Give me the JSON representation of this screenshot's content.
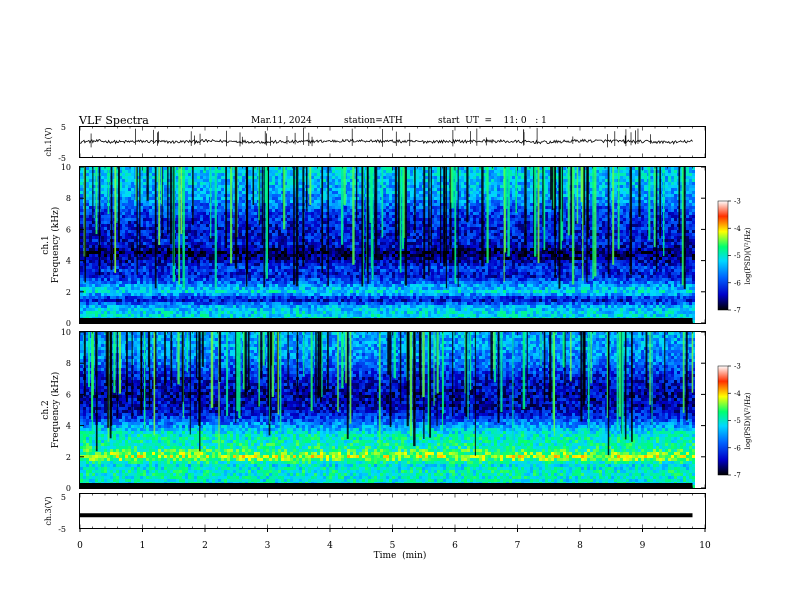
{
  "header": {
    "title": "VLF  Spectra",
    "date": "Mar.11, 2024",
    "station": "station=ATH",
    "start": "start  UT  =    11: 0   : 1"
  },
  "chart_data": [
    {
      "type": "line",
      "panel": "ch1-waveform",
      "ylabel": "ch.1(V)",
      "yticks": [
        "5",
        "-5"
      ],
      "ylim": [
        -5,
        5
      ],
      "xlim": [
        0,
        10
      ],
      "series": [
        {
          "x": [
            0,
            0.3,
            0.6,
            1.0,
            1.5,
            2.0,
            2.5,
            3.0,
            3.5,
            4.0,
            4.5,
            5.0,
            5.5,
            6.0,
            6.5,
            7.0,
            7.5,
            8.0,
            8.5,
            9.0,
            9.5,
            9.8
          ],
          "values": [
            0.1,
            0.3,
            0.0,
            0.2,
            0.0,
            0.3,
            0.2,
            0.0,
            0.1,
            0.3,
            0.4,
            0.2,
            0.1,
            0.2,
            0.3,
            0.1,
            -0.1,
            0.4,
            0.3,
            0.1,
            -0.1,
            0.2
          ]
        }
      ],
      "color": "#000000"
    },
    {
      "type": "heatmap",
      "panel": "ch1-spectrogram",
      "ylabel": "ch.1\nFrequency  (kHz)",
      "ylim": [
        0,
        10
      ],
      "xlim": [
        0,
        10
      ],
      "yticks": [
        "0",
        "2",
        "4",
        "6",
        "8",
        "10"
      ],
      "data_end_min": 9.8,
      "levels_log_psd": [
        {
          "f_khz": 0.5,
          "v": -5.2
        },
        {
          "f_khz": 1.0,
          "v": -5.4
        },
        {
          "f_khz": 1.5,
          "v": -6.4
        },
        {
          "f_khz": 2.0,
          "v": -5.2
        },
        {
          "f_khz": 2.5,
          "v": -5.7
        },
        {
          "f_khz": 3.0,
          "v": -6.3
        },
        {
          "f_khz": 3.5,
          "v": -6.1
        },
        {
          "f_khz": 4.0,
          "v": -6.5
        },
        {
          "f_khz": 4.5,
          "v": -6.8
        },
        {
          "f_khz": 5.0,
          "v": -6.3
        },
        {
          "f_khz": 6.0,
          "v": -6.3
        },
        {
          "f_khz": 7.0,
          "v": -6.1
        },
        {
          "f_khz": 8.0,
          "v": -5.6
        },
        {
          "f_khz": 9.0,
          "v": -5.4
        },
        {
          "f_khz": 10.0,
          "v": -5.3
        }
      ],
      "colorbar": {
        "label": "log(PSD)(V²/Hz)",
        "ticks": [
          "-3",
          "-4",
          "-5",
          "-6",
          "-7"
        ],
        "range": [
          -7,
          -3
        ]
      }
    },
    {
      "type": "heatmap",
      "panel": "ch2-spectrogram",
      "ylabel": "ch.2\nFrequency  (kHz)",
      "ylim": [
        0,
        10
      ],
      "xlim": [
        0,
        10
      ],
      "yticks": [
        "0",
        "2",
        "4",
        "6",
        "8",
        "10"
      ],
      "data_end_min": 9.8,
      "levels_log_psd": [
        {
          "f_khz": 0.5,
          "v": -5.1
        },
        {
          "f_khz": 1.0,
          "v": -5.0
        },
        {
          "f_khz": 1.5,
          "v": -5.2
        },
        {
          "f_khz": 2.0,
          "v": -4.3
        },
        {
          "f_khz": 2.5,
          "v": -4.9
        },
        {
          "f_khz": 3.0,
          "v": -5.0
        },
        {
          "f_khz": 3.5,
          "v": -5.1
        },
        {
          "f_khz": 4.0,
          "v": -5.6
        },
        {
          "f_khz": 4.5,
          "v": -6.1
        },
        {
          "f_khz": 5.0,
          "v": -6.4
        },
        {
          "f_khz": 6.0,
          "v": -6.5
        },
        {
          "f_khz": 7.0,
          "v": -6.3
        },
        {
          "f_khz": 8.0,
          "v": -5.8
        },
        {
          "f_khz": 9.0,
          "v": -5.6
        },
        {
          "f_khz": 10.0,
          "v": -5.5
        }
      ],
      "colorbar": {
        "label": "log(PSD)(V²/Hz)",
        "ticks": [
          "-3",
          "-4",
          "-5",
          "-6",
          "-7"
        ],
        "range": [
          -7,
          -3
        ]
      }
    },
    {
      "type": "line",
      "panel": "ch3-waveform",
      "ylabel": "ch.3(V)",
      "yticks": [
        "5",
        "-5"
      ],
      "ylim": [
        -5,
        5
      ],
      "xlim": [
        0,
        10
      ],
      "series": [
        {
          "x": [
            0,
            9.8
          ],
          "values": [
            -1.2,
            -1.2
          ]
        }
      ],
      "color": "#000000",
      "xlabel": "Time  (min)",
      "xticks": [
        "0",
        "1",
        "2",
        "3",
        "4",
        "5",
        "6",
        "7",
        "8",
        "9",
        "10"
      ]
    }
  ],
  "colors": {
    "colormap": [
      "#000000",
      "#0000c8",
      "#0064ff",
      "#00d8ff",
      "#00ff70",
      "#ffff00",
      "#ff3000",
      "#ffffff"
    ]
  }
}
